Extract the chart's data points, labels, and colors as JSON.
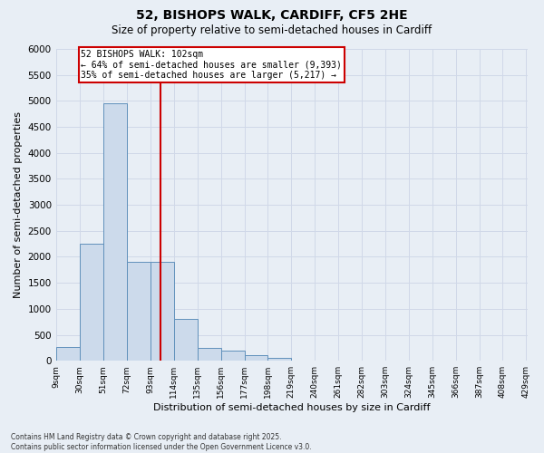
{
  "title1": "52, BISHOPS WALK, CARDIFF, CF5 2HE",
  "title2": "Size of property relative to semi-detached houses in Cardiff",
  "xlabel": "Distribution of semi-detached houses by size in Cardiff",
  "ylabel": "Number of semi-detached properties",
  "property_size": 102,
  "annotation_line1": "52 BISHOPS WALK: 102sqm",
  "annotation_line2": "← 64% of semi-detached houses are smaller (9,393)",
  "annotation_line3": "35% of semi-detached houses are larger (5,217) →",
  "bar_color": "#ccdaeb",
  "bar_edge_color": "#6090bb",
  "vline_color": "#cc0000",
  "bg_color": "#e8eef5",
  "footnote1": "Contains HM Land Registry data © Crown copyright and database right 2025.",
  "footnote2": "Contains public sector information licensed under the Open Government Licence v3.0.",
  "bin_starts": [
    9,
    30,
    51,
    72,
    93,
    114,
    135,
    156,
    177,
    198,
    219,
    240,
    261,
    282,
    303,
    324,
    345,
    366,
    387,
    408
  ],
  "bin_width": 21,
  "counts": [
    270,
    2250,
    4950,
    1900,
    1900,
    800,
    250,
    200,
    100,
    60,
    0,
    0,
    0,
    0,
    0,
    0,
    0,
    0,
    0,
    0
  ],
  "ylim_max": 6000,
  "ytick_step": 500,
  "figwidth": 6.0,
  "figheight": 5.0,
  "dpi": 100
}
